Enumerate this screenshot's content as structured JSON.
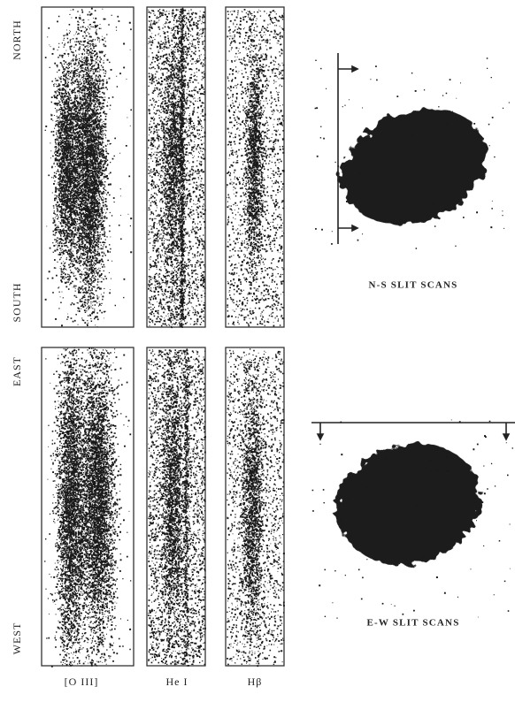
{
  "labels": {
    "north": "NORTH",
    "south": "SOUTH",
    "east": "EAST",
    "west": "WEST"
  },
  "captions": {
    "ns": "N-S SLIT SCANS",
    "ew": "E-W SLIT SCANS"
  },
  "columns": [
    "[O III]",
    "He I",
    "Hβ"
  ]
}
